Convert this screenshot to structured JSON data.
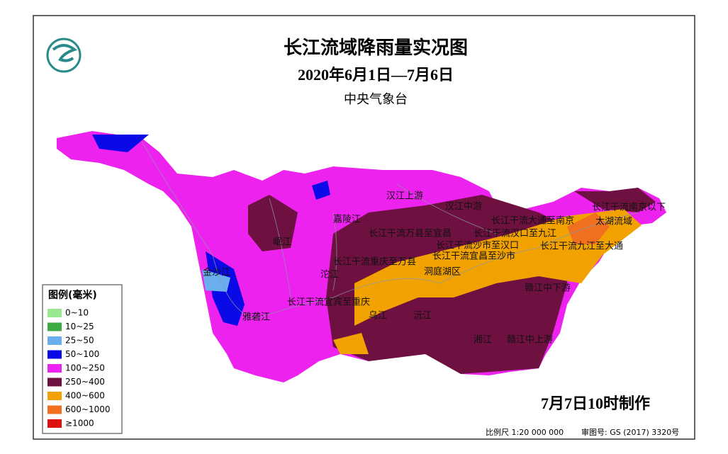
{
  "header": {
    "title": "长江流域降雨量实况图",
    "subtitle": "2020年6月1日—7月6日",
    "source": "中央气象台"
  },
  "legend": {
    "title": "图例(毫米)",
    "items": [
      {
        "label": "0~10",
        "color": "#98e890"
      },
      {
        "label": "10~25",
        "color": "#3cab44"
      },
      {
        "label": "25~50",
        "color": "#6aaeee"
      },
      {
        "label": "50~100",
        "color": "#0a0ae6"
      },
      {
        "label": "100~250",
        "color": "#ee22ee"
      },
      {
        "label": "250~400",
        "color": "#6e1040"
      },
      {
        "label": "400~600",
        "color": "#f2a200"
      },
      {
        "label": "600~1000",
        "color": "#f07020"
      },
      {
        "label": "≥1000",
        "color": "#dd1010"
      }
    ]
  },
  "regions": [
    "汉江上游",
    "汉江中游",
    "嘉陵江",
    "岷江",
    "金沙江",
    "沱江",
    "雅砻江",
    "长江干流宜宾至重庆",
    "长江干流重庆至万县",
    "长江干流万县至宜昌",
    "长江干流宜昌至沙市",
    "长江干流沙市至汉口",
    "长江干流汉口至九江",
    "长江干流九江至大通",
    "长江干流大通至南京",
    "太湖流域",
    "长江干流南京以下",
    "洞庭湖区",
    "乌江",
    "沅江",
    "湘江",
    "赣江中下游",
    "赣江中上游"
  ],
  "footer": {
    "issued": "7月7日10时制作",
    "scale": "比例尺 1:20 000 000",
    "review": "审图号: GS (2017) 3320号"
  }
}
